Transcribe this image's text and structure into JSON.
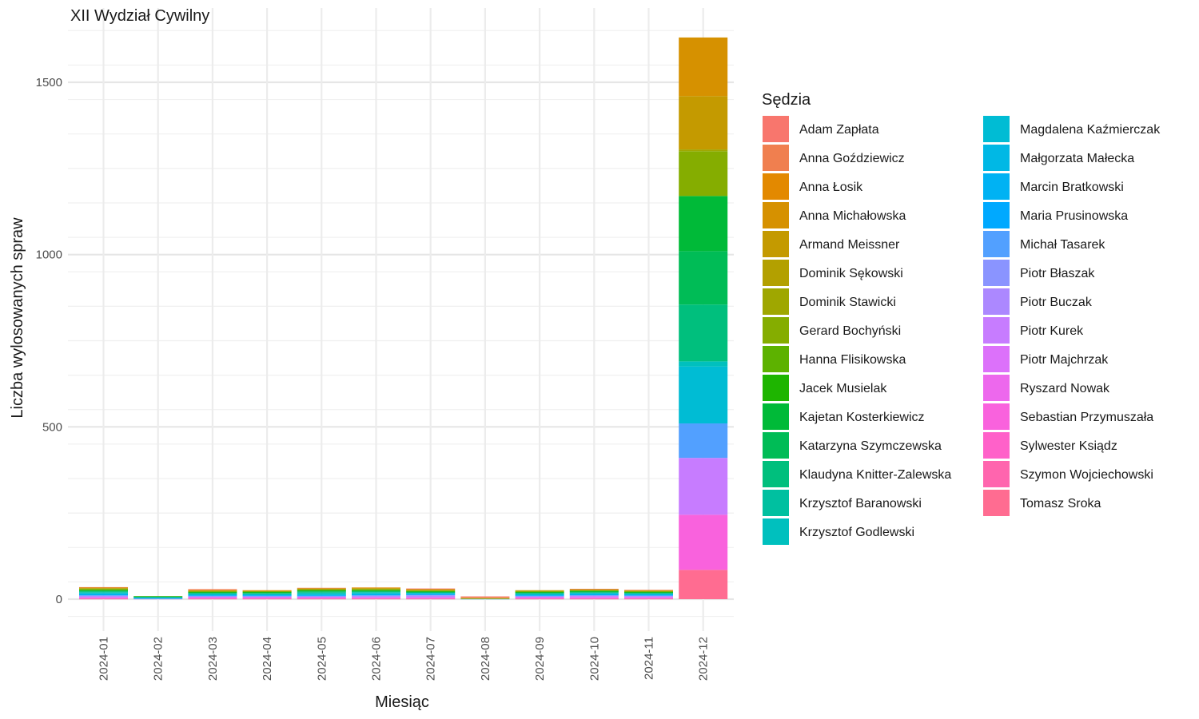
{
  "chart_data": {
    "type": "bar",
    "stacked": true,
    "title": "XII Wydział Cywilny",
    "xlabel": "Miesiąc",
    "ylabel": "Liczba wylosowanych spraw",
    "ylim": [
      -70,
      1710
    ],
    "y_ticks": [
      0,
      500,
      1000,
      1500
    ],
    "grid": true,
    "legend": {
      "title": "Sędzia",
      "position": "right",
      "columns": 2
    },
    "categories": [
      "2024-01",
      "2024-02",
      "2024-03",
      "2024-04",
      "2024-05",
      "2024-06",
      "2024-07",
      "2024-08",
      "2024-09",
      "2024-10",
      "2024-11",
      "2024-12"
    ],
    "series": [
      {
        "name": "Adam Zapłata",
        "color": "#F8766D",
        "values": [
          0,
          0,
          1,
          0,
          0,
          0,
          1,
          2,
          0,
          1,
          0,
          0
        ]
      },
      {
        "name": "Anna Goździewicz",
        "color": "#F07F4F",
        "values": [
          1,
          0,
          1,
          0,
          1,
          0,
          1,
          2,
          0,
          0,
          1,
          0
        ]
      },
      {
        "name": "Anna Łosik",
        "color": "#E38900",
        "values": [
          0,
          0,
          1,
          1,
          0,
          1,
          0,
          1,
          0,
          0,
          1,
          0
        ]
      },
      {
        "name": "Anna Michałowska",
        "color": "#D69100",
        "values": [
          1,
          0,
          0,
          1,
          1,
          1,
          1,
          0,
          0,
          1,
          0,
          170
        ]
      },
      {
        "name": "Armand Meissner",
        "color": "#C49A00",
        "values": [
          1,
          0,
          1,
          0,
          1,
          1,
          1,
          1,
          1,
          1,
          0,
          155
        ]
      },
      {
        "name": "Dominik Sękowski",
        "color": "#B3A000",
        "values": [
          1,
          0,
          1,
          1,
          1,
          1,
          1,
          0,
          1,
          0,
          1,
          0
        ]
      },
      {
        "name": "Dominik Stawicki",
        "color": "#9FA700",
        "values": [
          1,
          0,
          1,
          0,
          1,
          1,
          1,
          1,
          1,
          1,
          1,
          5
        ]
      },
      {
        "name": "Gerard Bochyński",
        "color": "#85AD00",
        "values": [
          2,
          0,
          1,
          1,
          1,
          1,
          1,
          0,
          1,
          1,
          1,
          130
        ]
      },
      {
        "name": "Hanna Flisikowska",
        "color": "#5DB200",
        "values": [
          1,
          1,
          1,
          1,
          1,
          2,
          1,
          0,
          1,
          1,
          1,
          0
        ]
      },
      {
        "name": "Jacek Musielak",
        "color": "#1EB500",
        "values": [
          1,
          0,
          1,
          1,
          1,
          1,
          1,
          0,
          1,
          1,
          1,
          0
        ]
      },
      {
        "name": "Kajetan Kosterkiewicz",
        "color": "#00BA38",
        "values": [
          2,
          0,
          1,
          2,
          2,
          2,
          1,
          0,
          1,
          1,
          1,
          160
        ]
      },
      {
        "name": "Katarzyna Szymczewska",
        "color": "#00BC56",
        "values": [
          1,
          1,
          1,
          1,
          2,
          1,
          1,
          0,
          1,
          2,
          1,
          155
        ]
      },
      {
        "name": "Klaudyna Knitter-Zalewska",
        "color": "#00BF7D",
        "values": [
          2,
          1,
          1,
          1,
          2,
          1,
          1,
          0,
          1,
          1,
          1,
          165
        ]
      },
      {
        "name": "Krzysztof Baranowski",
        "color": "#00C0A0",
        "values": [
          2,
          1,
          2,
          1,
          2,
          2,
          1,
          0,
          2,
          1,
          1,
          0
        ]
      },
      {
        "name": "Krzysztof Godlewski",
        "color": "#00C0BE",
        "values": [
          2,
          1,
          1,
          1,
          2,
          2,
          1,
          0,
          1,
          1,
          1,
          15
        ]
      },
      {
        "name": "Magdalena Kaźmierczak",
        "color": "#00BCD4",
        "values": [
          2,
          1,
          1,
          1,
          2,
          2,
          1,
          1,
          1,
          2,
          1,
          165
        ]
      },
      {
        "name": "Małgorzata Małecka",
        "color": "#00B8E5",
        "values": [
          1,
          0,
          1,
          1,
          1,
          1,
          1,
          0,
          1,
          1,
          1,
          0
        ]
      },
      {
        "name": "Marcin Bratkowski",
        "color": "#00B2F3",
        "values": [
          1,
          1,
          1,
          1,
          1,
          1,
          1,
          0,
          1,
          1,
          1,
          0
        ]
      },
      {
        "name": "Maria Prusinowska",
        "color": "#00A9FF",
        "values": [
          1,
          0,
          1,
          1,
          1,
          1,
          1,
          0,
          1,
          1,
          1,
          0
        ]
      },
      {
        "name": "Michał Tasarek",
        "color": "#52A0FF",
        "values": [
          2,
          1,
          1,
          1,
          1,
          2,
          1,
          0,
          1,
          1,
          1,
          100
        ]
      },
      {
        "name": "Piotr Błaszak",
        "color": "#8A94FF",
        "values": [
          1,
          0,
          1,
          1,
          1,
          1,
          2,
          0,
          1,
          1,
          1,
          0
        ]
      },
      {
        "name": "Piotr Buczak",
        "color": "#AC88FF",
        "values": [
          1,
          0,
          1,
          1,
          1,
          1,
          2,
          0,
          1,
          1,
          1,
          0
        ]
      },
      {
        "name": "Piotr Kurek",
        "color": "#C77CFF",
        "values": [
          2,
          1,
          1,
          1,
          1,
          2,
          2,
          0,
          1,
          2,
          2,
          165
        ]
      },
      {
        "name": "Piotr Majchrzak",
        "color": "#DC71FA",
        "values": [
          1,
          0,
          1,
          1,
          1,
          1,
          1,
          0,
          1,
          2,
          1,
          0
        ]
      },
      {
        "name": "Ryszard Nowak",
        "color": "#ED68ED",
        "values": [
          1,
          0,
          1,
          1,
          1,
          1,
          1,
          0,
          1,
          1,
          1,
          0
        ]
      },
      {
        "name": "Sebastian Przymuszała",
        "color": "#F962DD",
        "values": [
          1,
          0,
          1,
          1,
          1,
          1,
          1,
          0,
          1,
          1,
          1,
          160
        ]
      },
      {
        "name": "Sylwester Ksiądz",
        "color": "#FF61C9",
        "values": [
          1,
          0,
          1,
          1,
          1,
          1,
          1,
          0,
          1,
          1,
          1,
          0
        ]
      },
      {
        "name": "Szymon Wojciechowski",
        "color": "#FF65AE",
        "values": [
          1,
          0,
          1,
          1,
          1,
          1,
          1,
          0,
          1,
          1,
          1,
          0
        ]
      },
      {
        "name": "Tomasz Sroka",
        "color": "#FF6C91",
        "values": [
          1,
          0,
          1,
          1,
          1,
          1,
          1,
          0,
          1,
          1,
          1,
          85
        ]
      }
    ]
  }
}
